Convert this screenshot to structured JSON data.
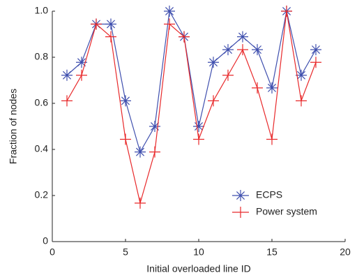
{
  "chart_data": {
    "type": "line",
    "x_label": "Initial overloaded line ID",
    "y_label": "Fraction of nodes",
    "x": [
      1,
      2,
      3,
      4,
      5,
      6,
      7,
      8,
      9,
      10,
      11,
      12,
      13,
      14,
      15,
      16,
      17,
      18
    ],
    "series": [
      {
        "name": "ECPS",
        "color": "#3f4fae",
        "marker": "asterisk",
        "values": [
          0.722,
          0.778,
          0.944,
          0.944,
          0.611,
          0.389,
          0.5,
          1.0,
          0.889,
          0.5,
          0.778,
          0.833,
          0.889,
          0.833,
          0.667,
          1.0,
          0.722,
          0.833
        ]
      },
      {
        "name": "Power system",
        "color": "#e8282a",
        "marker": "plus",
        "values": [
          0.611,
          0.722,
          0.944,
          0.889,
          0.444,
          0.167,
          0.389,
          0.944,
          0.889,
          0.444,
          0.611,
          0.722,
          0.833,
          0.667,
          0.444,
          1.0,
          0.611,
          0.778
        ]
      }
    ],
    "xlim": [
      0,
      20
    ],
    "xticks": [
      0,
      5,
      10,
      15,
      20
    ],
    "ylim": [
      0,
      1
    ],
    "yticks": [
      0,
      0.2,
      0.4,
      0.6,
      0.8,
      {
        "value": 1,
        "label": "1.0"
      }
    ],
    "legend": "lower right"
  }
}
